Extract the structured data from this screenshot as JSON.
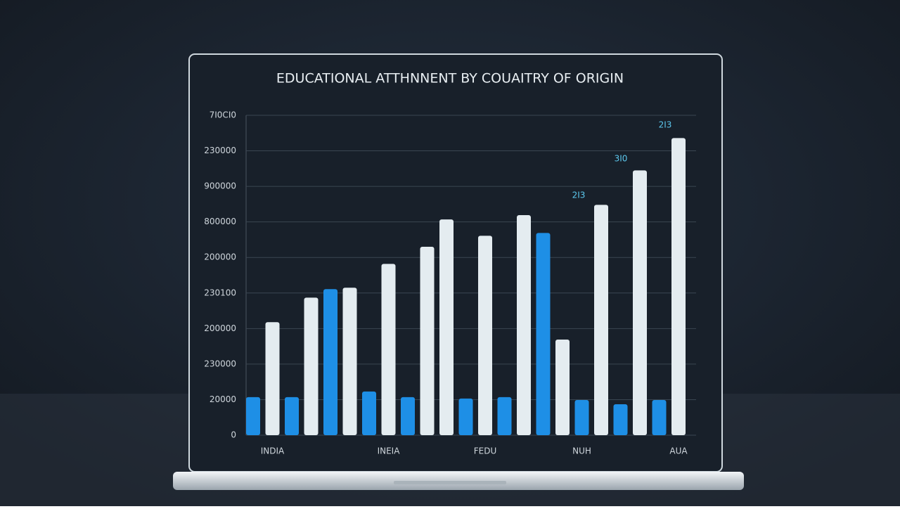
{
  "chart_data": {
    "type": "bar",
    "title": "EDUCATIONAL ATTHNNENT BY COUAITRY OF ORIGIN",
    "categories": [
      null,
      "INDIA",
      null,
      null,
      null,
      null,
      null,
      "INEIA",
      null,
      null,
      null,
      null,
      "FEDU",
      null,
      null,
      null,
      null,
      "NUH",
      null,
      null,
      null,
      null,
      "AUA"
    ],
    "values": [
      1.07,
      3.18,
      1.07,
      3.87,
      4.11,
      4.15,
      1.23,
      4.82,
      1.07,
      5.3,
      6.07,
      1.03,
      5.61,
      1.07,
      6.19,
      5.69,
      2.69,
      0.99,
      6.48,
      0.87,
      7.45,
      0.99,
      8.36
    ],
    "colors": [
      "#1e8fe6",
      "#e4ecf0",
      "#1e8fe6",
      "#e4ecf0",
      "#1e8fe6",
      "#e4ecf0",
      "#1e8fe6",
      "#e4ecf0",
      "#1e8fe6",
      "#e4ecf0",
      "#e4ecf0",
      "#1e8fe6",
      "#e4ecf0",
      "#1e8fe6",
      "#e4ecf0",
      "#1e8fe6",
      "#e4ecf0",
      "#1e8fe6",
      "#e4ecf0",
      "#1e8fe6",
      "#e4ecf0",
      "#1e8fe6",
      "#e4ecf0"
    ],
    "ylim": [
      0,
      9
    ],
    "yticks": [
      0,
      {
        "value": 1,
        "label": "20000"
      },
      {
        "value": 2,
        "label": "230000"
      },
      {
        "value": 3,
        "label": "200000"
      },
      {
        "value": 4,
        "label": "230100"
      },
      {
        "value": 5,
        "label": "200000"
      },
      {
        "value": 6,
        "label": "800000"
      },
      {
        "value": 7,
        "label": "900000"
      },
      {
        "value": 8,
        "label": "230000"
      },
      {
        "value": 9,
        "label": "7I0CI0"
      }
    ],
    "annotations": [
      "2I3",
      "3I0",
      "2I3"
    ],
    "grid": true
  }
}
